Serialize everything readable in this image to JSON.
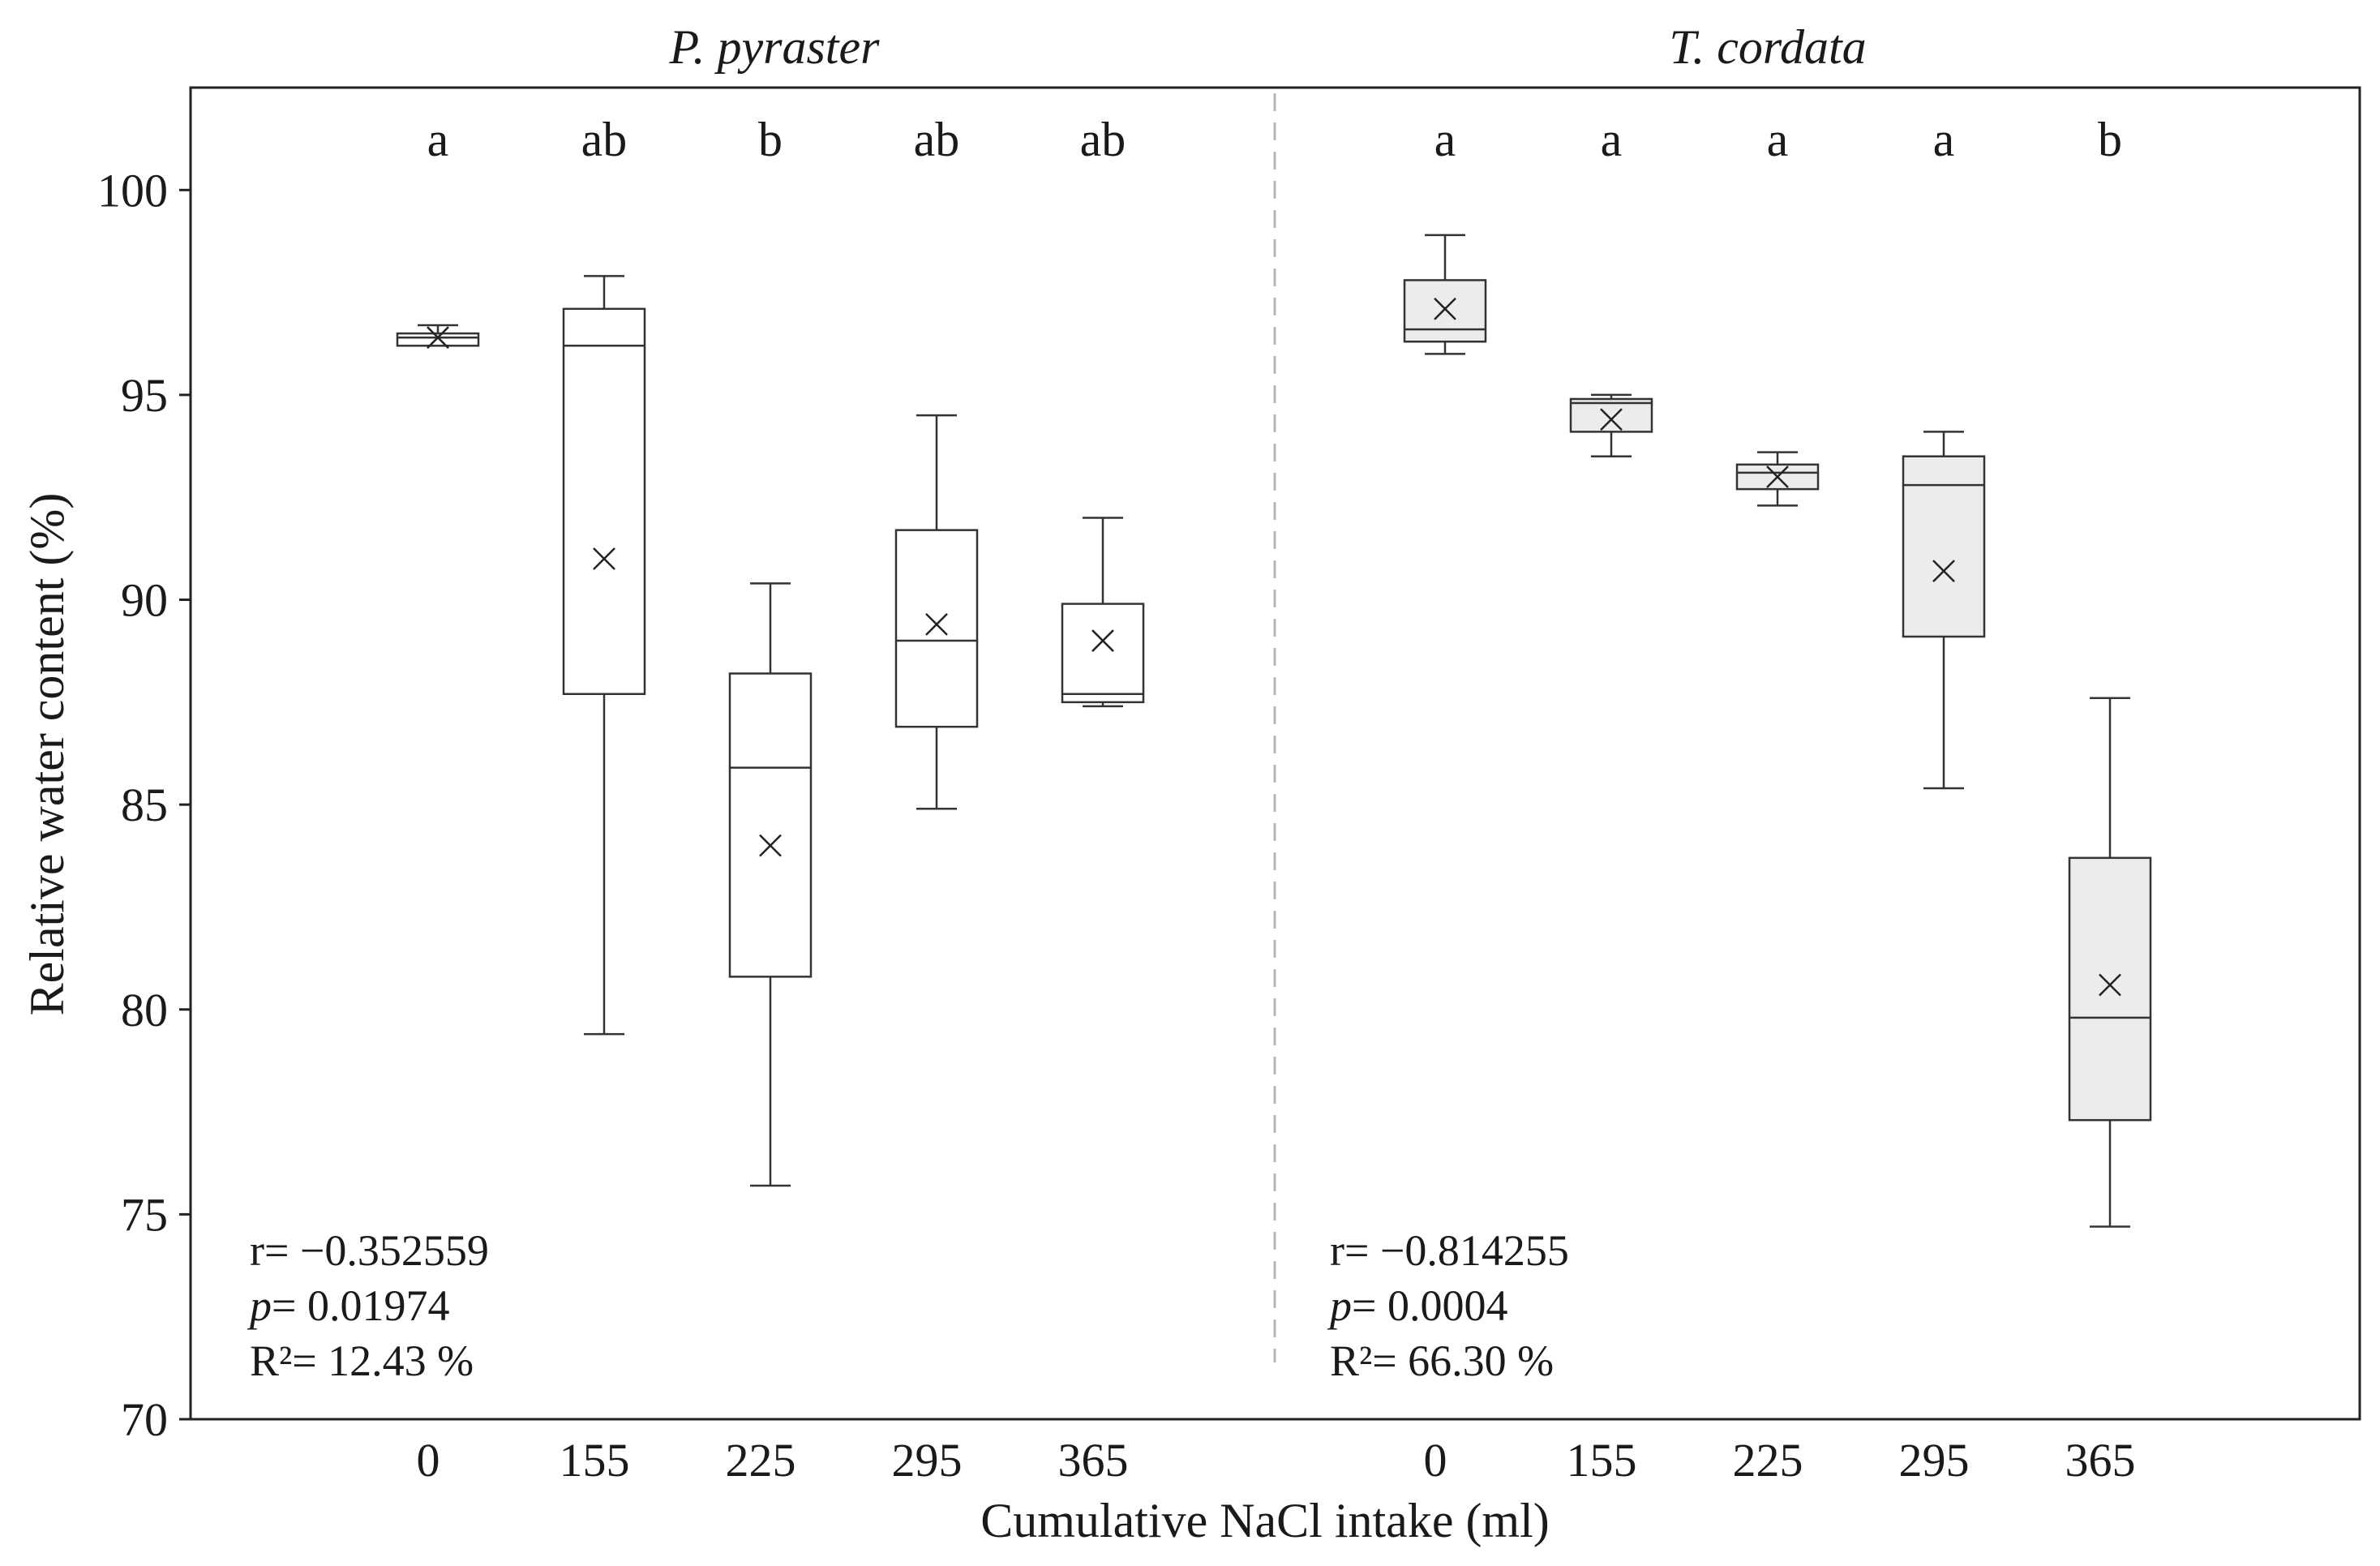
{
  "chart_data": {
    "type": "box",
    "xlabel": "Cumulative NaCl intake (ml)",
    "ylabel": "Relative water content (%)",
    "ylim": [
      70,
      102.5
    ],
    "yticks": [
      70,
      75,
      80,
      85,
      90,
      95,
      100
    ],
    "grid": false,
    "panels": [
      {
        "title": "P. pyraster",
        "box_fill": "#ffffff",
        "categories": [
          "0",
          "155",
          "225",
          "295",
          "365"
        ],
        "significance": [
          "a",
          "ab",
          "b",
          "ab",
          "ab"
        ],
        "boxes": [
          {
            "min": 96.2,
            "q1": 96.2,
            "median": 96.4,
            "q3": 96.5,
            "max": 96.7,
            "mean": 96.4
          },
          {
            "min": 79.4,
            "q1": 87.7,
            "median": 96.2,
            "q3": 97.1,
            "max": 97.9,
            "mean": 91.0
          },
          {
            "min": 75.7,
            "q1": 80.8,
            "median": 85.9,
            "q3": 88.2,
            "max": 90.4,
            "mean": 84.0
          },
          {
            "min": 84.9,
            "q1": 86.9,
            "median": 89.0,
            "q3": 91.7,
            "max": 94.5,
            "mean": 89.4
          },
          {
            "min": 87.4,
            "q1": 87.5,
            "median": 87.7,
            "q3": 89.9,
            "max": 92.0,
            "mean": 89.0
          }
        ],
        "stats": {
          "r_label": "r= −0.352559",
          "p_label": "p",
          "p_value": "= 0.01974",
          "r2_label": "R²= 12.43 %"
        }
      },
      {
        "title": "T. cordata",
        "box_fill": "#ececec",
        "categories": [
          "0",
          "155",
          "225",
          "295",
          "365"
        ],
        "significance": [
          "a",
          "a",
          "a",
          "a",
          "b"
        ],
        "boxes": [
          {
            "min": 96.0,
            "q1": 96.3,
            "median": 96.6,
            "q3": 97.8,
            "max": 98.9,
            "mean": 97.1
          },
          {
            "min": 93.5,
            "q1": 94.1,
            "median": 94.8,
            "q3": 94.9,
            "max": 95.0,
            "mean": 94.4
          },
          {
            "min": 92.3,
            "q1": 92.7,
            "median": 93.1,
            "q3": 93.3,
            "max": 93.6,
            "mean": 93.0
          },
          {
            "min": 85.4,
            "q1": 89.1,
            "median": 92.8,
            "q3": 93.5,
            "max": 94.1,
            "mean": 90.7
          },
          {
            "min": 74.7,
            "q1": 77.3,
            "median": 79.8,
            "q3": 83.7,
            "max": 87.6,
            "mean": 80.6
          }
        ],
        "stats": {
          "r_label": "r= −0.814255",
          "p_label": "p",
          "p_value": "= 0.0004",
          "r2_label": "R²= 66.30 %"
        }
      }
    ]
  }
}
